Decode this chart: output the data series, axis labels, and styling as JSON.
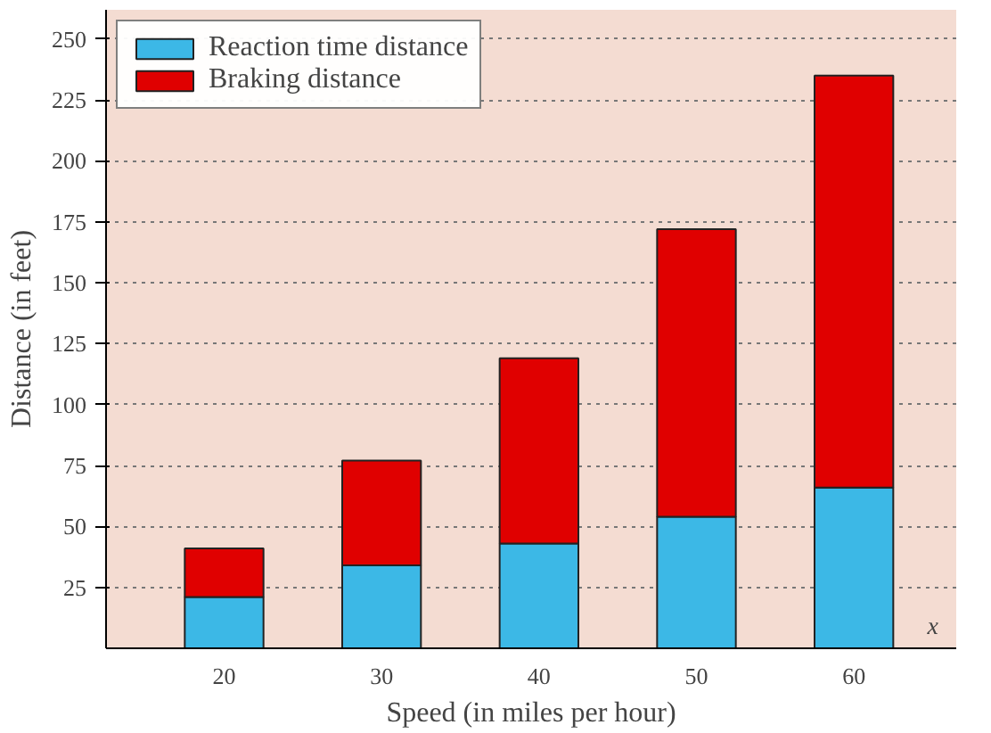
{
  "chart_data": {
    "type": "bar",
    "stacked": true,
    "xlabel": "Speed (in miles per hour)",
    "ylabel": "Distance (in feet)",
    "categories": [
      "20",
      "30",
      "40",
      "50",
      "60"
    ],
    "series": [
      {
        "name": "Reaction time distance",
        "color": "#3cb8e6",
        "values": [
          21,
          34,
          43,
          54,
          66
        ]
      },
      {
        "name": "Braking distance",
        "color": "#e00000",
        "values": [
          20,
          43,
          76,
          118,
          169
        ]
      }
    ],
    "ylim": [
      0,
      262
    ],
    "yticks": [
      25,
      50,
      75,
      100,
      125,
      150,
      175,
      200,
      225,
      250
    ],
    "grid": "y",
    "legend": "top left",
    "annotations": [
      "x"
    ]
  }
}
